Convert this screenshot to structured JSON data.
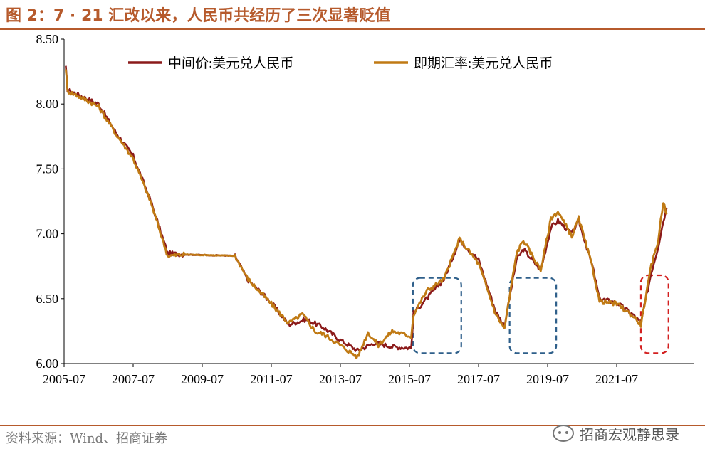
{
  "header": {
    "title": "图 2：7 · 21 汇改以来，人民币共经历了三次显著贬值"
  },
  "footer": {
    "source": "资料来源：Wind、招商证券",
    "watermark": "招商宏观静思录",
    "watermark_icon": "wechat-icon"
  },
  "chart_data": {
    "type": "line",
    "title": "",
    "xlabel": "",
    "ylabel": "",
    "ylim": [
      6.0,
      8.5
    ],
    "yticks": [
      "6.00",
      "6.50",
      "7.00",
      "7.50",
      "8.00",
      "8.50"
    ],
    "xticks": [
      "2005-07",
      "2007-07",
      "2009-07",
      "2011-07",
      "2013-07",
      "2015-07",
      "2017-07",
      "2019-07",
      "2021-07"
    ],
    "xlim": [
      2005.5,
      2023.0
    ],
    "legend": {
      "position": "top-left",
      "entries": [
        "中间价:美元兑人民币",
        "即期汇率:美元兑人民币"
      ]
    },
    "series": [
      {
        "name": "中间价:美元兑人民币",
        "color": "#8b1a1a",
        "points": [
          [
            2005.55,
            8.28
          ],
          [
            2005.6,
            8.11
          ],
          [
            2006.0,
            8.06
          ],
          [
            2006.5,
            8.0
          ],
          [
            2007.0,
            7.78
          ],
          [
            2007.5,
            7.6
          ],
          [
            2008.0,
            7.26
          ],
          [
            2008.5,
            6.85
          ],
          [
            2009.0,
            6.84
          ],
          [
            2010.45,
            6.83
          ],
          [
            2010.8,
            6.65
          ],
          [
            2011.0,
            6.6
          ],
          [
            2011.5,
            6.47
          ],
          [
            2012.0,
            6.3
          ],
          [
            2012.5,
            6.34
          ],
          [
            2013.0,
            6.28
          ],
          [
            2013.5,
            6.18
          ],
          [
            2014.0,
            6.1
          ],
          [
            2014.5,
            6.16
          ],
          [
            2015.0,
            6.13
          ],
          [
            2015.55,
            6.12
          ],
          [
            2015.62,
            6.39
          ],
          [
            2016.0,
            6.5
          ],
          [
            2016.5,
            6.65
          ],
          [
            2016.95,
            6.95
          ],
          [
            2017.5,
            6.8
          ],
          [
            2018.0,
            6.4
          ],
          [
            2018.25,
            6.29
          ],
          [
            2018.6,
            6.8
          ],
          [
            2018.8,
            6.88
          ],
          [
            2019.3,
            6.72
          ],
          [
            2019.6,
            7.05
          ],
          [
            2019.8,
            7.1
          ],
          [
            2020.2,
            7.0
          ],
          [
            2020.4,
            7.1
          ],
          [
            2020.8,
            6.75
          ],
          [
            2021.0,
            6.5
          ],
          [
            2021.5,
            6.47
          ],
          [
            2022.0,
            6.37
          ],
          [
            2022.2,
            6.31
          ],
          [
            2022.5,
            6.7
          ],
          [
            2022.7,
            6.9
          ],
          [
            2022.85,
            7.1
          ],
          [
            2022.95,
            7.2
          ]
        ]
      },
      {
        "name": "即期汇率:美元兑人民币",
        "color": "#c07a14",
        "points": [
          [
            2005.55,
            8.28
          ],
          [
            2005.6,
            8.1
          ],
          [
            2006.0,
            8.05
          ],
          [
            2006.5,
            7.98
          ],
          [
            2007.0,
            7.77
          ],
          [
            2007.5,
            7.58
          ],
          [
            2008.0,
            7.25
          ],
          [
            2008.5,
            6.83
          ],
          [
            2009.0,
            6.84
          ],
          [
            2010.45,
            6.83
          ],
          [
            2010.8,
            6.66
          ],
          [
            2011.0,
            6.6
          ],
          [
            2011.5,
            6.46
          ],
          [
            2012.0,
            6.31
          ],
          [
            2012.4,
            6.38
          ],
          [
            2012.8,
            6.24
          ],
          [
            2013.0,
            6.23
          ],
          [
            2013.5,
            6.14
          ],
          [
            2014.0,
            6.05
          ],
          [
            2014.3,
            6.24
          ],
          [
            2014.6,
            6.14
          ],
          [
            2015.0,
            6.25
          ],
          [
            2015.55,
            6.21
          ],
          [
            2015.62,
            6.38
          ],
          [
            2016.0,
            6.56
          ],
          [
            2016.5,
            6.65
          ],
          [
            2016.95,
            6.96
          ],
          [
            2017.5,
            6.77
          ],
          [
            2018.0,
            6.38
          ],
          [
            2018.25,
            6.27
          ],
          [
            2018.6,
            6.85
          ],
          [
            2018.8,
            6.95
          ],
          [
            2019.3,
            6.72
          ],
          [
            2019.6,
            7.12
          ],
          [
            2019.8,
            7.17
          ],
          [
            2020.2,
            6.98
          ],
          [
            2020.4,
            7.12
          ],
          [
            2020.8,
            6.74
          ],
          [
            2021.0,
            6.48
          ],
          [
            2021.5,
            6.46
          ],
          [
            2022.0,
            6.36
          ],
          [
            2022.2,
            6.3
          ],
          [
            2022.5,
            6.75
          ],
          [
            2022.7,
            6.95
          ],
          [
            2022.85,
            7.25
          ],
          [
            2022.95,
            7.15
          ]
        ]
      }
    ],
    "highlights": [
      {
        "x": [
          2015.6,
          2017.0
        ],
        "y": [
          6.08,
          6.66
        ],
        "color": "#2e5f8a",
        "style": "dashed"
      },
      {
        "x": [
          2018.4,
          2019.75
        ],
        "y": [
          6.08,
          6.66
        ],
        "color": "#2e5f8a",
        "style": "dashed"
      },
      {
        "x": [
          2022.2,
          2023.0
        ],
        "y": [
          6.08,
          6.68
        ],
        "color": "#d32020",
        "style": "dashed"
      }
    ]
  }
}
